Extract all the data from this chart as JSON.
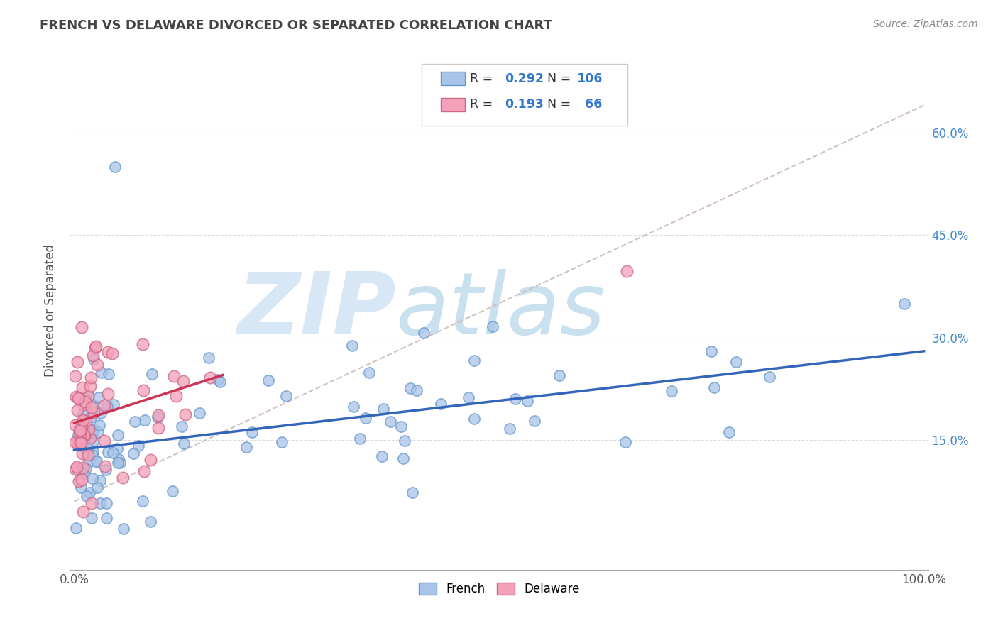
{
  "title": "FRENCH VS DELAWARE DIVORCED OR SEPARATED CORRELATION CHART",
  "source_text": "Source: ZipAtlas.com",
  "ylabel": "Divorced or Separated",
  "xlim": [
    -0.005,
    1.005
  ],
  "ylim": [
    -0.04,
    0.72
  ],
  "xticks": [
    0.0,
    0.2,
    0.4,
    0.6,
    0.8,
    1.0
  ],
  "xtick_labels": [
    "0.0%",
    "",
    "",
    "",
    "",
    "100.0%"
  ],
  "yticks": [
    0.15,
    0.3,
    0.45,
    0.6
  ],
  "ytick_labels": [
    "15.0%",
    "30.0%",
    "45.0%",
    "60.0%"
  ],
  "french_color": "#a8c4e8",
  "french_edge_color": "#6699cc",
  "delaware_color": "#f4a0b8",
  "delaware_edge_color": "#cc6688",
  "french_line_color": "#3366bb",
  "delaware_line_color": "#cc3355",
  "gray_trend_color": "#ccbbbb",
  "watermark_zip": "ZIP",
  "watermark_atlas": "atlas",
  "legend_R_french": "0.292",
  "legend_N_french": "106",
  "legend_R_delaware": "0.193",
  "legend_N_delaware": "66",
  "french_trend_intercept": 0.135,
  "french_trend_slope": 0.145,
  "delaware_trend_intercept": 0.175,
  "delaware_trend_slope": 0.4,
  "delaware_trend_xmax": 0.175,
  "gray_trend_intercept": 0.06,
  "gray_trend_slope": 0.58
}
